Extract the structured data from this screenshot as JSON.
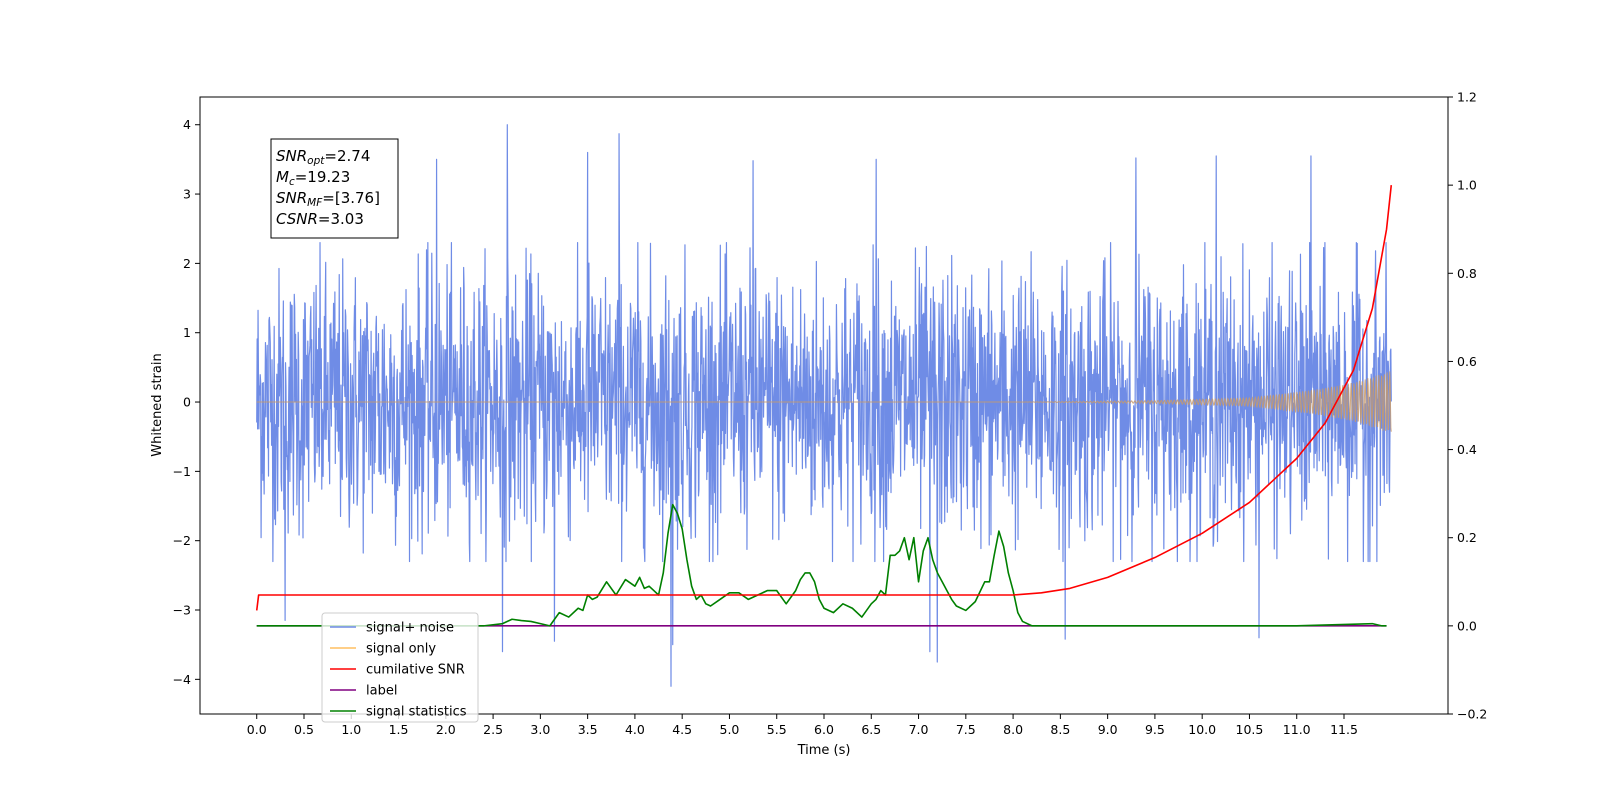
{
  "chart_data": {
    "type": "line",
    "title": "",
    "xlabel": "Time (s)",
    "ylabel": "Whitened strain",
    "xlim": [
      -0.6,
      12.6
    ],
    "ylim": [
      -4.5,
      4.4
    ],
    "y2lim": [
      -0.2,
      1.2
    ],
    "x_ticks": [
      0.0,
      0.5,
      1.0,
      1.5,
      2.0,
      2.5,
      3.0,
      3.5,
      4.0,
      4.5,
      5.0,
      5.5,
      6.0,
      6.5,
      7.0,
      7.5,
      8.0,
      8.5,
      9.0,
      9.5,
      10.0,
      10.5,
      11.0,
      11.5
    ],
    "x_tick_labels": [
      "0.0",
      "0.5",
      "1.0",
      "1.5",
      "2.0",
      "2.5",
      "3.0",
      "3.5",
      "4.0",
      "4.5",
      "5.0",
      "5.5",
      "6.0",
      "6.5",
      "7.0",
      "7.5",
      "8.0",
      "8.5",
      "9.0",
      "9.5",
      "10.0",
      "10.5",
      "11.0",
      "11.5"
    ],
    "y_ticks": [
      4,
      3,
      2,
      1,
      0,
      -1,
      -2,
      -3,
      -4
    ],
    "y_tick_labels": [
      "4",
      "3",
      "2",
      "1",
      "0",
      "−1",
      "−2",
      "−3",
      "−4"
    ],
    "y2_ticks": [
      1.2,
      1.0,
      0.8,
      0.6,
      0.4,
      0.2,
      0.0,
      -0.2
    ],
    "y2_tick_labels": [
      "1.2",
      "1.0",
      "0.8",
      "0.6",
      "0.4",
      "0.2",
      "0.0",
      "−0.2"
    ],
    "grid": false,
    "legend_position": "lower-left",
    "legend": [
      {
        "label": "signal+ noise",
        "color": "#6f8ce6"
      },
      {
        "label": "signal only",
        "color": "#ffbf60"
      },
      {
        "label": "cumilative SNR",
        "color": "#ff0000"
      },
      {
        "label": "label",
        "color": "#800080"
      },
      {
        "label": "signal statistics",
        "color": "#008000"
      }
    ],
    "stats_box": {
      "lines": [
        {
          "sym": "SNR",
          "sub": "opt",
          "val": "=2.74"
        },
        {
          "sym": "M",
          "sub": "c",
          "val": "=19.23"
        },
        {
          "sym": "SNR",
          "sub": "MF",
          "val": "=[3.76]"
        },
        {
          "sym": "CSNR",
          "sub": "",
          "val": "=3.03"
        }
      ]
    },
    "series": [
      {
        "name": "signal+ noise",
        "axis": "left",
        "color": "#6f8ce6",
        "x_range": [
          0.0,
          12.0
        ],
        "typical_range": [
          -2.0,
          2.0
        ],
        "spikes": [
          {
            "x": 2.65,
            "y": 4.0
          },
          {
            "x": 3.83,
            "y": 3.87
          },
          {
            "x": 3.5,
            "y": 3.6
          },
          {
            "x": 1.9,
            "y": 3.5
          },
          {
            "x": 5.25,
            "y": 3.48
          },
          {
            "x": 6.55,
            "y": 3.5
          },
          {
            "x": 9.3,
            "y": 3.52
          },
          {
            "x": 10.15,
            "y": 3.55
          },
          {
            "x": 11.15,
            "y": 3.55
          },
          {
            "x": 4.38,
            "y": -4.1
          },
          {
            "x": 7.2,
            "y": -3.75
          },
          {
            "x": 7.12,
            "y": -3.6
          },
          {
            "x": 2.6,
            "y": -3.6
          },
          {
            "x": 4.4,
            "y": -3.5
          },
          {
            "x": 8.55,
            "y": -3.42
          },
          {
            "x": 10.6,
            "y": -3.4
          },
          {
            "x": 0.3,
            "y": -3.15
          },
          {
            "x": 3.15,
            "y": -3.45
          }
        ]
      },
      {
        "name": "signal only",
        "axis": "left",
        "color": "#c89a6a",
        "x_range": [
          0.0,
          12.0
        ],
        "amplitude": [
          [
            0.0,
            0.0
          ],
          [
            8.0,
            0.0
          ],
          [
            9.5,
            0.02
          ],
          [
            10.5,
            0.06
          ],
          [
            11.2,
            0.18
          ],
          [
            11.6,
            0.28
          ],
          [
            12.0,
            0.45
          ]
        ]
      },
      {
        "name": "cumilative SNR",
        "axis": "right",
        "color": "#ff0000",
        "x": [
          0.0,
          0.02,
          0.05,
          1.0,
          3.0,
          5.0,
          7.0,
          8.0,
          8.3,
          8.6,
          9.0,
          9.5,
          10.0,
          10.5,
          11.0,
          11.3,
          11.6,
          11.8,
          11.95,
          12.0
        ],
        "y": [
          0.035,
          0.07,
          0.07,
          0.07,
          0.07,
          0.07,
          0.07,
          0.07,
          0.075,
          0.085,
          0.11,
          0.155,
          0.21,
          0.28,
          0.38,
          0.46,
          0.58,
          0.72,
          0.9,
          1.0
        ]
      },
      {
        "name": "label",
        "axis": "right",
        "color": "#800080",
        "x": [
          0.0,
          11.95
        ],
        "y": [
          0.0,
          0.0
        ]
      },
      {
        "name": "signal statistics",
        "axis": "right",
        "color": "#008000",
        "x": [
          0.0,
          2.4,
          2.6,
          2.7,
          2.8,
          2.9,
          3.0,
          3.1,
          3.2,
          3.3,
          3.4,
          3.45,
          3.5,
          3.55,
          3.6,
          3.7,
          3.8,
          3.9,
          4.0,
          4.05,
          4.1,
          4.15,
          4.2,
          4.25,
          4.3,
          4.35,
          4.4,
          4.45,
          4.5,
          4.55,
          4.6,
          4.65,
          4.7,
          4.75,
          4.8,
          4.9,
          5.0,
          5.1,
          5.2,
          5.3,
          5.4,
          5.5,
          5.6,
          5.7,
          5.75,
          5.8,
          5.85,
          5.9,
          5.95,
          6.0,
          6.1,
          6.2,
          6.3,
          6.4,
          6.5,
          6.55,
          6.6,
          6.65,
          6.7,
          6.75,
          6.8,
          6.85,
          6.9,
          6.95,
          7.0,
          7.05,
          7.1,
          7.15,
          7.2,
          7.25,
          7.3,
          7.35,
          7.4,
          7.5,
          7.6,
          7.7,
          7.75,
          7.8,
          7.85,
          7.9,
          7.95,
          8.0,
          8.05,
          8.1,
          8.2,
          8.3,
          8.5,
          9.0,
          10.0,
          11.0,
          11.8,
          11.9,
          11.95
        ],
        "y": [
          0.0,
          0.0,
          0.005,
          0.015,
          0.012,
          0.01,
          0.005,
          0.0,
          0.03,
          0.02,
          0.04,
          0.035,
          0.07,
          0.06,
          0.065,
          0.1,
          0.07,
          0.105,
          0.09,
          0.11,
          0.085,
          0.09,
          0.08,
          0.07,
          0.12,
          0.21,
          0.275,
          0.255,
          0.22,
          0.15,
          0.09,
          0.06,
          0.07,
          0.05,
          0.045,
          0.06,
          0.075,
          0.075,
          0.06,
          0.07,
          0.08,
          0.08,
          0.05,
          0.08,
          0.105,
          0.12,
          0.12,
          0.1,
          0.06,
          0.04,
          0.03,
          0.05,
          0.04,
          0.02,
          0.05,
          0.06,
          0.08,
          0.07,
          0.16,
          0.16,
          0.17,
          0.2,
          0.15,
          0.2,
          0.1,
          0.17,
          0.2,
          0.15,
          0.12,
          0.1,
          0.08,
          0.06,
          0.045,
          0.035,
          0.055,
          0.1,
          0.1,
          0.16,
          0.215,
          0.18,
          0.12,
          0.08,
          0.03,
          0.01,
          0.0,
          0.0,
          0.0,
          0.0,
          0.0,
          0.0,
          0.005,
          0.0,
          0.0
        ]
      }
    ]
  }
}
